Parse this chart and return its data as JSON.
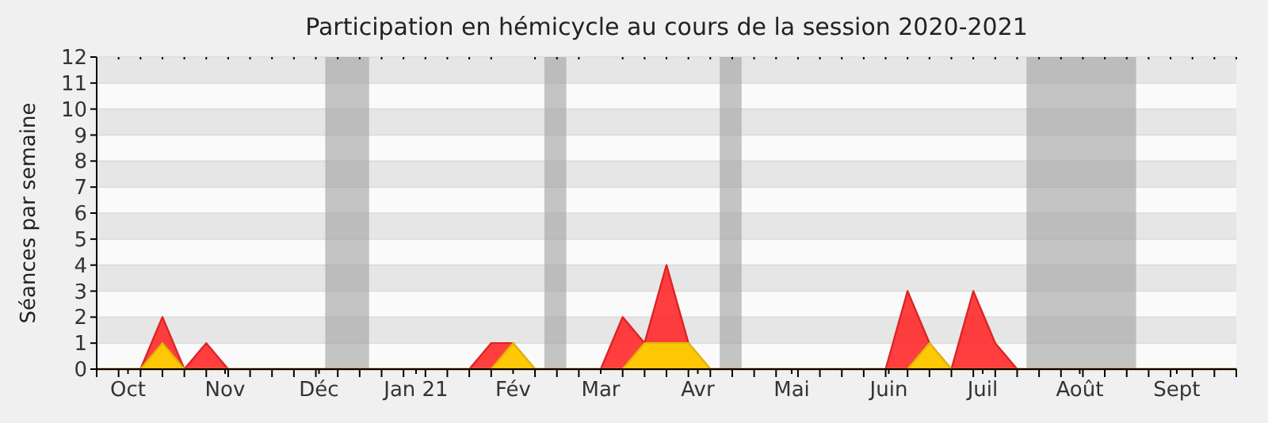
{
  "chart_data": {
    "type": "area",
    "title": "Participation en hémicycle au cours de la session 2020-2021",
    "ylabel": "Séances par semaine",
    "x": [
      "2020-09-21",
      "2020-09-28",
      "2020-10-05",
      "2020-10-12",
      "2020-10-19",
      "2020-10-26",
      "2020-11-02",
      "2020-11-09",
      "2020-11-16",
      "2020-11-23",
      "2020-11-30",
      "2020-12-07",
      "2020-12-14",
      "2020-12-21",
      "2020-12-28",
      "2021-01-04",
      "2021-01-11",
      "2021-01-18",
      "2021-01-25",
      "2021-02-01",
      "2021-02-08",
      "2021-02-15",
      "2021-02-22",
      "2021-03-01",
      "2021-03-08",
      "2021-03-15",
      "2021-03-22",
      "2021-03-29",
      "2021-04-05",
      "2021-04-12",
      "2021-04-19",
      "2021-04-26",
      "2021-05-03",
      "2021-05-10",
      "2021-05-17",
      "2021-05-24",
      "2021-05-31",
      "2021-06-07",
      "2021-06-14",
      "2021-06-21",
      "2021-06-28",
      "2021-07-05",
      "2021-07-12",
      "2021-07-19",
      "2021-07-26",
      "2021-08-02",
      "2021-08-09",
      "2021-08-16",
      "2021-08-23",
      "2021-08-30",
      "2021-09-06",
      "2021-09-13",
      "2021-09-20"
    ],
    "series": [
      {
        "color": "#ff2a2a",
        "values": [
          0,
          0,
          0,
          2,
          0,
          1,
          0,
          0,
          0,
          0,
          0,
          0,
          0,
          0,
          0,
          0,
          0,
          0,
          1,
          1,
          0,
          0,
          0,
          0,
          2,
          1,
          4,
          1,
          0,
          0,
          0,
          0,
          0,
          0,
          0,
          0,
          0,
          3,
          1,
          0,
          3,
          1,
          0,
          0,
          0,
          0,
          0,
          0,
          0,
          0,
          0,
          0,
          0
        ]
      },
      {
        "color": "#ffd700",
        "values": [
          0,
          0,
          0,
          1,
          0,
          0,
          0,
          0,
          0,
          0,
          0,
          0,
          0,
          0,
          0,
          0,
          0,
          0,
          0,
          1,
          0,
          0,
          0,
          0,
          0,
          1,
          1,
          1,
          0,
          0,
          0,
          0,
          0,
          0,
          0,
          0,
          0,
          0,
          1,
          0,
          0,
          0,
          0,
          0,
          0,
          0,
          0,
          0,
          0,
          0,
          0,
          0,
          0
        ]
      }
    ],
    "xlim": [
      "2020-09-21",
      "2021-09-20"
    ],
    "ylim": [
      0,
      12
    ],
    "yticks": [
      0,
      1,
      2,
      3,
      4,
      5,
      6,
      7,
      8,
      9,
      10,
      11,
      12
    ],
    "xticks": [
      {
        "value": "2020-10-01",
        "label": "Oct"
      },
      {
        "value": "2020-11-01",
        "label": "Nov"
      },
      {
        "value": "2020-12-01",
        "label": "Déc"
      },
      {
        "value": "2021-01-01",
        "label": "Jan 21"
      },
      {
        "value": "2021-02-01",
        "label": "Fév"
      },
      {
        "value": "2021-03-01",
        "label": "Mar"
      },
      {
        "value": "2021-04-01",
        "label": "Avr"
      },
      {
        "value": "2021-05-01",
        "label": "Mai"
      },
      {
        "value": "2021-06-01",
        "label": "Juin"
      },
      {
        "value": "2021-07-01",
        "label": "Juil"
      },
      {
        "value": "2021-08-01",
        "label": "Août"
      },
      {
        "value": "2021-09-01",
        "label": "Sept"
      },
      {
        "value": "2020-09-21",
        "label": null
      },
      {
        "value": "2020-09-28",
        "label": null
      },
      {
        "value": "2020-10-05",
        "label": null
      },
      {
        "value": "2020-10-12",
        "label": null
      },
      {
        "value": "2020-10-19",
        "label": null
      },
      {
        "value": "2020-10-26",
        "label": null
      },
      {
        "value": "2020-11-02",
        "label": null
      },
      {
        "value": "2020-11-09",
        "label": null
      },
      {
        "value": "2020-11-16",
        "label": null
      },
      {
        "value": "2020-11-23",
        "label": null
      },
      {
        "value": "2020-11-30",
        "label": null
      },
      {
        "value": "2020-12-07",
        "label": null
      },
      {
        "value": "2020-12-14",
        "label": null
      },
      {
        "value": "2020-12-21",
        "label": null
      },
      {
        "value": "2020-12-28",
        "label": null
      },
      {
        "value": "2021-01-04",
        "label": null
      },
      {
        "value": "2021-01-11",
        "label": null
      },
      {
        "value": "2021-01-18",
        "label": null
      },
      {
        "value": "2021-01-25",
        "label": null
      },
      {
        "value": "2021-02-08",
        "label": null
      },
      {
        "value": "2021-02-15",
        "label": null
      },
      {
        "value": "2021-02-22",
        "label": null
      },
      {
        "value": "2021-03-08",
        "label": null
      },
      {
        "value": "2021-03-15",
        "label": null
      },
      {
        "value": "2021-03-22",
        "label": null
      },
      {
        "value": "2021-03-29",
        "label": null
      },
      {
        "value": "2021-04-05",
        "label": null
      },
      {
        "value": "2021-04-12",
        "label": null
      },
      {
        "value": "2021-04-19",
        "label": null
      },
      {
        "value": "2021-04-26",
        "label": null
      },
      {
        "value": "2021-05-03",
        "label": null
      },
      {
        "value": "2021-05-10",
        "label": null
      },
      {
        "value": "2021-05-17",
        "label": null
      },
      {
        "value": "2021-05-24",
        "label": null
      },
      {
        "value": "2021-05-31",
        "label": null
      },
      {
        "value": "2021-06-07",
        "label": null
      },
      {
        "value": "2021-06-14",
        "label": null
      },
      {
        "value": "2021-06-21",
        "label": null
      },
      {
        "value": "2021-06-28",
        "label": null
      },
      {
        "value": "2021-07-05",
        "label": null
      },
      {
        "value": "2021-07-12",
        "label": null
      },
      {
        "value": "2021-07-19",
        "label": null
      },
      {
        "value": "2021-07-26",
        "label": null
      },
      {
        "value": "2021-08-02",
        "label": null
      },
      {
        "value": "2021-08-09",
        "label": null
      },
      {
        "value": "2021-08-16",
        "label": null
      },
      {
        "value": "2021-08-23",
        "label": null
      },
      {
        "value": "2021-08-30",
        "label": null
      },
      {
        "value": "2021-09-06",
        "label": null
      },
      {
        "value": "2021-09-13",
        "label": null
      },
      {
        "value": "2021-09-20",
        "label": null
      }
    ],
    "bands": [
      {
        "axis": "x",
        "from": "2020-12-03",
        "to": "2020-12-17",
        "color": "#a0a0a0"
      },
      {
        "axis": "x",
        "from": "2021-02-11",
        "to": "2021-02-18",
        "color": "#a0a0a0"
      },
      {
        "axis": "x",
        "from": "2021-04-08",
        "to": "2021-04-15",
        "color": "#a0a0a0"
      },
      {
        "axis": "x",
        "from": "2021-07-15",
        "to": "2021-08-19",
        "color": "#a0a0a0"
      }
    ],
    "grid": true
  }
}
